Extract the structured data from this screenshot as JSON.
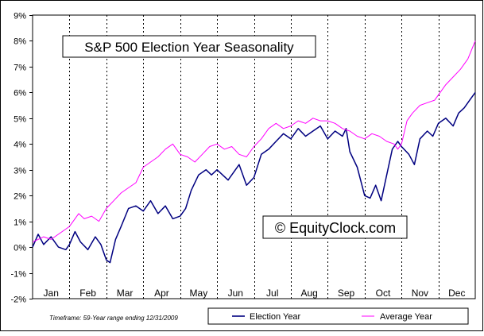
{
  "chart_data": {
    "type": "line",
    "title": "S&P 500 Election Year Seasonality",
    "watermark": "© EquityClock.com",
    "footnote": "Timeframe: 59-Year range ending 12/31/2009",
    "xlabel": "",
    "ylabel": "",
    "ylim": [
      -2,
      9
    ],
    "xlim": [
      0,
      12
    ],
    "y_ticks": [
      "-2%",
      "-1%",
      "0%",
      "1%",
      "2%",
      "3%",
      "4%",
      "5%",
      "6%",
      "7%",
      "8%",
      "9%"
    ],
    "categories": [
      "Jan",
      "Feb",
      "Mar",
      "Apr",
      "May",
      "Jun",
      "Jul",
      "Aug",
      "Sep",
      "Oct",
      "Nov",
      "Dec"
    ],
    "grid": "vertical dashed month separators",
    "legend_position": "bottom-right",
    "series": [
      {
        "name": "Election Year",
        "color": "#000080",
        "x": [
          0,
          0.15,
          0.3,
          0.5,
          0.7,
          0.9,
          1.0,
          1.15,
          1.3,
          1.5,
          1.7,
          1.85,
          2.0,
          2.1,
          2.25,
          2.4,
          2.6,
          2.8,
          3.0,
          3.2,
          3.4,
          3.6,
          3.8,
          4.0,
          4.15,
          4.3,
          4.5,
          4.7,
          4.85,
          5.0,
          5.3,
          5.6,
          5.8,
          6.0,
          6.2,
          6.4,
          6.6,
          6.8,
          7.0,
          7.2,
          7.4,
          7.6,
          7.8,
          8.0,
          8.2,
          8.4,
          8.5,
          8.6,
          8.8,
          9.0,
          9.15,
          9.3,
          9.45,
          9.6,
          9.75,
          9.9,
          10.0,
          10.2,
          10.35,
          10.5,
          10.7,
          10.85,
          11.0,
          11.2,
          11.4,
          11.55,
          11.7,
          11.85,
          12.0
        ],
        "values": [
          0.0,
          0.5,
          0.1,
          0.4,
          0.0,
          -0.1,
          0.1,
          0.6,
          0.2,
          -0.1,
          0.4,
          0.1,
          -0.5,
          -0.6,
          0.3,
          0.8,
          1.5,
          1.6,
          1.4,
          1.8,
          1.3,
          1.6,
          1.1,
          1.2,
          1.5,
          2.2,
          2.8,
          3.0,
          2.8,
          3.0,
          2.6,
          3.2,
          2.4,
          2.7,
          3.6,
          3.8,
          4.1,
          4.4,
          4.2,
          4.6,
          4.3,
          4.5,
          4.7,
          4.2,
          4.5,
          4.3,
          4.6,
          3.7,
          3.1,
          2.0,
          1.9,
          2.4,
          1.8,
          2.8,
          3.8,
          4.1,
          3.9,
          3.6,
          3.2,
          4.2,
          4.5,
          4.3,
          4.8,
          5.0,
          4.7,
          5.2,
          5.4,
          5.7,
          6.0
        ]
      },
      {
        "name": "Average Year",
        "color": "#ff00ff",
        "x": [
          0,
          0.15,
          0.3,
          0.5,
          0.7,
          0.9,
          1.0,
          1.1,
          1.25,
          1.4,
          1.6,
          1.8,
          2.0,
          2.2,
          2.4,
          2.6,
          2.8,
          3.0,
          3.2,
          3.4,
          3.6,
          3.8,
          4.0,
          4.2,
          4.4,
          4.6,
          4.8,
          5.0,
          5.2,
          5.4,
          5.6,
          5.8,
          6.0,
          6.2,
          6.4,
          6.6,
          6.8,
          7.0,
          7.2,
          7.4,
          7.6,
          7.8,
          8.0,
          8.2,
          8.4,
          8.6,
          8.8,
          9.0,
          9.2,
          9.4,
          9.6,
          9.8,
          9.9,
          10.0,
          10.15,
          10.3,
          10.5,
          10.7,
          10.9,
          11.0,
          11.2,
          11.4,
          11.6,
          11.8,
          12.0
        ],
        "values": [
          0.2,
          0.3,
          0.4,
          0.3,
          0.5,
          0.7,
          0.8,
          1.0,
          1.3,
          1.1,
          1.2,
          1.0,
          1.5,
          1.8,
          2.1,
          2.3,
          2.5,
          3.1,
          3.3,
          3.5,
          3.8,
          4.0,
          3.6,
          3.5,
          3.3,
          3.6,
          3.9,
          4.0,
          3.8,
          3.9,
          3.6,
          3.5,
          3.9,
          4.2,
          4.6,
          4.8,
          4.6,
          4.7,
          4.9,
          4.8,
          5.0,
          4.9,
          4.9,
          4.8,
          4.6,
          4.5,
          4.3,
          4.2,
          4.4,
          4.3,
          4.1,
          4.0,
          3.8,
          4.0,
          4.9,
          5.2,
          5.5,
          5.6,
          5.7,
          5.9,
          6.3,
          6.6,
          6.9,
          7.3,
          8.0
        ]
      }
    ]
  }
}
